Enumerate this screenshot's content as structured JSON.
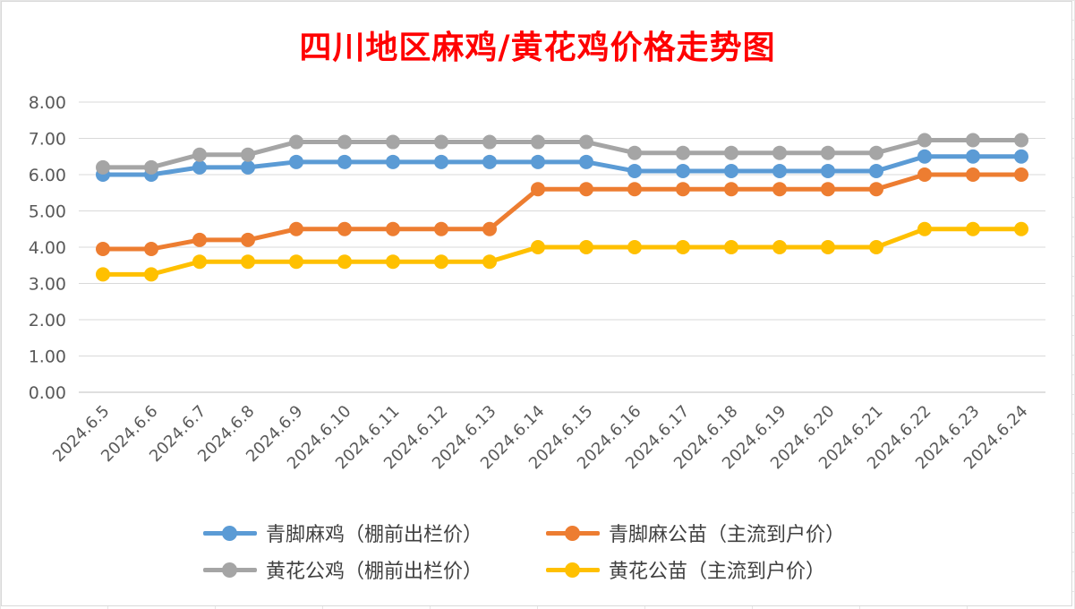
{
  "chart_data": {
    "type": "line",
    "title": "四川地区麻鸡/黄花鸡价格走势图",
    "xlabel": "",
    "ylabel": "",
    "ylim": [
      0,
      8
    ],
    "yticks": [
      "0.00",
      "1.00",
      "2.00",
      "3.00",
      "4.00",
      "5.00",
      "6.00",
      "7.00",
      "8.00"
    ],
    "grid": true,
    "legend_position": "bottom",
    "categories": [
      "2024.6.5",
      "2024.6.6",
      "2024.6.7",
      "2024.6.8",
      "2024.6.9",
      "2024.6.10",
      "2024.6.11",
      "2024.6.12",
      "2024.6.13",
      "2024.6.14",
      "2024.6.15",
      "2024.6.16",
      "2024.6.17",
      "2024.6.18",
      "2024.6.19",
      "2024.6.20",
      "2024.6.21",
      "2024.6.22",
      "2024.6.23",
      "2024.6.24"
    ],
    "series": [
      {
        "name": "青脚麻鸡（棚前出栏价）",
        "color": "#5b9bd5",
        "values": [
          6.0,
          6.0,
          6.2,
          6.2,
          6.35,
          6.35,
          6.35,
          6.35,
          6.35,
          6.35,
          6.35,
          6.1,
          6.1,
          6.1,
          6.1,
          6.1,
          6.1,
          6.5,
          6.5,
          6.5
        ]
      },
      {
        "name": "青脚麻公苗（主流到户价）",
        "color": "#ed7d31",
        "values": [
          3.95,
          3.95,
          4.2,
          4.2,
          4.5,
          4.5,
          4.5,
          4.5,
          4.5,
          5.6,
          5.6,
          5.6,
          5.6,
          5.6,
          5.6,
          5.6,
          5.6,
          6.0,
          6.0,
          6.0
        ]
      },
      {
        "name": "黄花公鸡（棚前出栏价）",
        "color": "#a5a5a5",
        "values": [
          6.2,
          6.2,
          6.55,
          6.55,
          6.9,
          6.9,
          6.9,
          6.9,
          6.9,
          6.9,
          6.9,
          6.6,
          6.6,
          6.6,
          6.6,
          6.6,
          6.6,
          6.95,
          6.95,
          6.95
        ]
      },
      {
        "name": "黄花公苗（主流到户价）",
        "color": "#ffc000",
        "values": [
          3.25,
          3.25,
          3.6,
          3.6,
          3.6,
          3.6,
          3.6,
          3.6,
          3.6,
          4.0,
          4.0,
          4.0,
          4.0,
          4.0,
          4.0,
          4.0,
          4.0,
          4.5,
          4.5,
          4.5
        ]
      }
    ]
  },
  "legend_order": [
    0,
    1,
    2,
    3
  ]
}
